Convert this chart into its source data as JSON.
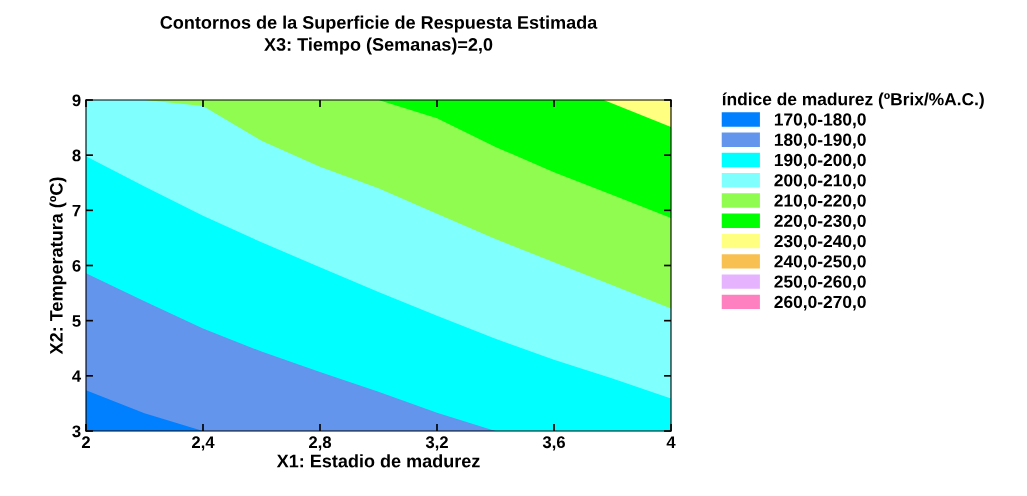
{
  "chart_data": {
    "type": "area",
    "title": "Contornos de la Superficie de Respuesta Estimada",
    "subtitle": "X3: Tiempo (Semanas)=2,0",
    "xlabel": "X1: Estadio de madurez",
    "ylabel": "X2: Temperatura (ºC)",
    "legend_title": "índice de madurez (ºBrix/%A.C.)",
    "legend": "right",
    "grid": false,
    "x": [
      2,
      2.2,
      2.4,
      2.6,
      2.8,
      3.0,
      3.2,
      3.4,
      3.6,
      3.8,
      4.0
    ],
    "xlim": [
      2,
      4
    ],
    "xticks": [
      2,
      {
        "value": 2.4,
        "label": "2,4"
      },
      {
        "value": 2.8,
        "label": "2,8"
      },
      {
        "value": 3.2,
        "label": "3,2"
      },
      {
        "value": 3.6,
        "label": "3,6"
      },
      4
    ],
    "ylim": [
      3,
      9
    ],
    "yticks": [
      3,
      4,
      5,
      6,
      7,
      8,
      9
    ],
    "series": [
      {
        "name": "170,0-180,0",
        "color": "#0080ff",
        "values": [
          3.74,
          3.32,
          3.0,
          null,
          null,
          null,
          null,
          null,
          null,
          null,
          null
        ]
      },
      {
        "name": "180,0-190,0",
        "color": "#6495ed",
        "values": [
          5.86,
          5.35,
          4.86,
          4.44,
          4.07,
          3.71,
          3.33,
          3.0,
          null,
          null,
          null
        ]
      },
      {
        "name": "190,0-200,0",
        "color": "#00ffff",
        "values": [
          7.98,
          7.43,
          6.9,
          6.42,
          5.97,
          5.52,
          5.09,
          4.67,
          4.29,
          3.95,
          3.59
        ]
      },
      {
        "name": "200,0-210,0",
        "color": "#80ffff",
        "values": [
          9,
          9,
          8.89,
          8.26,
          7.79,
          7.4,
          6.94,
          6.48,
          6.06,
          5.64,
          5.22
        ]
      },
      {
        "name": "210,0-220,0",
        "color": "#8ffc4f",
        "values": [
          null,
          9,
          9,
          9,
          9,
          9,
          8.67,
          8.15,
          7.69,
          7.28,
          6.86
        ]
      },
      {
        "name": "220,0-230,0",
        "color": "#00ff00",
        "x": [
          3.0,
          3.2,
          3.4,
          3.6,
          3.77,
          4.0
        ],
        "values": [
          9,
          9,
          9,
          9,
          9,
          8.51
        ]
      },
      {
        "name": "230,0-240,0",
        "color": "#ffff80",
        "x": [
          3.77,
          4.0
        ],
        "values": [
          9,
          9
        ]
      },
      {
        "name": "240,0-250,0",
        "color": "#f8c050",
        "values": [
          null,
          null,
          null,
          null,
          null,
          null,
          null,
          null,
          null,
          null,
          null
        ]
      },
      {
        "name": "250,0-260,0",
        "color": "#e6b4ff",
        "values": [
          null,
          null,
          null,
          null,
          null,
          null,
          null,
          null,
          null,
          null,
          null
        ]
      },
      {
        "name": "260,0-270,0",
        "color": "#ff80c0",
        "values": [
          null,
          null,
          null,
          null,
          null,
          null,
          null,
          null,
          null,
          null,
          null
        ]
      }
    ]
  }
}
